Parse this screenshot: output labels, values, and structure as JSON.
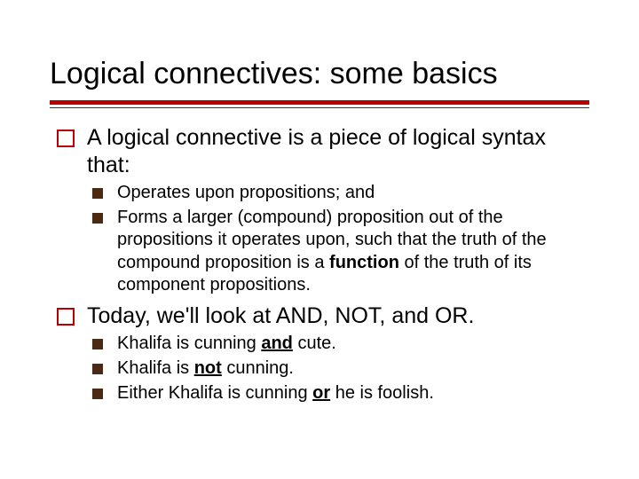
{
  "colors": {
    "accent": "#b80000",
    "bullet_square": "#4a2a12",
    "text": "#000000",
    "background": "#ffffff"
  },
  "typography": {
    "title_fontsize": 34,
    "level1_fontsize": 25,
    "level2_fontsize": 20,
    "font_family": "Verdana"
  },
  "title": "Logical connectives: some basics",
  "items": [
    {
      "text": "A logical connective is a piece of logical syntax that:",
      "sub": [
        {
          "html": "Operates upon propositions; and"
        },
        {
          "html": "Forms a larger (compound) proposition out of the propositions it operates upon, such that the truth of the compound proposition is a <b>function</b> of the truth of its component propositions."
        }
      ]
    },
    {
      "text": "Today, we'll look at AND, NOT, and OR.",
      "sub": [
        {
          "html": "Khalifa is cunning <b class=\"u\">and</b> cute."
        },
        {
          "html": "Khalifa is <b class=\"u\">not</b> cunning."
        },
        {
          "html": "Either Khalifa is cunning <b class=\"u\">or</b> he is foolish."
        }
      ]
    }
  ]
}
